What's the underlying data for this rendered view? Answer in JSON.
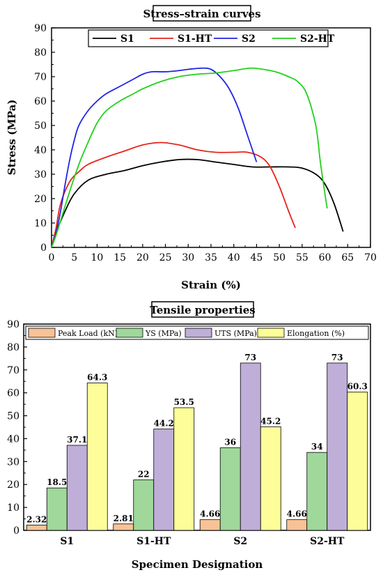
{
  "chart_data": [
    {
      "type": "line",
      "title": "Stress–strain curves",
      "xlabel": "Strain (%)",
      "ylabel": "Stress (MPa)",
      "xlim": [
        0,
        70
      ],
      "ylim": [
        0,
        90
      ],
      "xticks": [
        "0",
        "5",
        "10",
        "15",
        "20",
        "25",
        "30",
        "35",
        "40",
        "45",
        "50",
        "55",
        "60",
        "65",
        "70"
      ],
      "yticks": [
        "0",
        "10",
        "20",
        "30",
        "40",
        "50",
        "60",
        "70",
        "80",
        "90"
      ],
      "grid": false,
      "legend_position": "top",
      "series": [
        {
          "name": "S1",
          "color": "#000000",
          "x": [
            0,
            1,
            3,
            5,
            8,
            12,
            16,
            20,
            24,
            28,
            32,
            36,
            40,
            44,
            48,
            52,
            55,
            58,
            60,
            62,
            64
          ],
          "y": [
            0,
            6,
            15,
            22,
            27.5,
            30,
            31.5,
            33.5,
            35,
            36,
            36,
            35,
            34,
            33,
            33,
            33,
            32.5,
            30,
            26,
            18,
            6.5
          ]
        },
        {
          "name": "S1-HT",
          "color": "#e8231b",
          "x": [
            0,
            1,
            2,
            4,
            6,
            8,
            12,
            16,
            20,
            24,
            28,
            32,
            36,
            40,
            43,
            46,
            48,
            50,
            52,
            53.5
          ],
          "y": [
            0,
            8,
            18,
            27,
            31,
            34,
            37,
            39.5,
            42,
            43,
            42,
            40,
            39,
            39,
            39,
            37,
            33,
            25,
            15,
            8
          ]
        },
        {
          "name": "S2",
          "color": "#1f24e8",
          "x": [
            0,
            1,
            2,
            3,
            4,
            5,
            6,
            8,
            10,
            12,
            15,
            18,
            20,
            22,
            25,
            28,
            30,
            33,
            35,
            37,
            39,
            41,
            43,
            45
          ],
          "y": [
            0,
            6,
            15,
            26,
            36,
            44,
            50,
            56,
            60,
            63,
            66,
            69,
            71,
            72,
            72,
            72.5,
            73,
            73.5,
            73,
            70,
            65,
            57,
            46,
            35
          ]
        },
        {
          "name": "S2-HT",
          "color": "#22d11c",
          "x": [
            0,
            1,
            2,
            4,
            6,
            8,
            10,
            12,
            15,
            18,
            20,
            24,
            28,
            32,
            36,
            40,
            44,
            48,
            50,
            52,
            54,
            56,
            58,
            59,
            60,
            60.5
          ],
          "y": [
            0,
            5,
            11,
            23,
            34,
            43,
            51,
            56,
            60,
            63,
            65,
            68,
            70,
            71,
            71.5,
            72.5,
            73.5,
            72.5,
            71.5,
            70,
            68,
            63,
            50,
            35,
            22,
            16
          ]
        }
      ]
    },
    {
      "type": "bar",
      "title": "Tensile properties",
      "xlabel": "Specimen Designation",
      "ylabel": "",
      "ylim": [
        0,
        90
      ],
      "yticks": [
        "0",
        "10",
        "20",
        "30",
        "40",
        "50",
        "60",
        "70",
        "80",
        "90"
      ],
      "categories": [
        "S1",
        "S1-HT",
        "S2",
        "S2-HT"
      ],
      "legend_position": "top",
      "series": [
        {
          "name": "Peak Load (kN)",
          "color": "#f7c396",
          "values": [
            2.32,
            2.81,
            4.66,
            4.66
          ],
          "labels": [
            "2.32",
            "2.81",
            "4.66",
            "4.66"
          ]
        },
        {
          "name": "YS (MPa)",
          "color": "#9fd89a",
          "values": [
            18.5,
            22,
            36,
            34
          ],
          "labels": [
            "18.5",
            "22",
            "36",
            "34"
          ]
        },
        {
          "name": "UTS (MPa)",
          "color": "#bfaed8",
          "values": [
            37.1,
            44.2,
            73,
            73
          ],
          "labels": [
            "37.1",
            "44.2",
            "73",
            "73"
          ]
        },
        {
          "name": "Elongation (%)",
          "color": "#fdfd99",
          "values": [
            64.3,
            53.5,
            45.2,
            60.3
          ],
          "labels": [
            "64.3",
            "53.5",
            "45.2",
            "60.3"
          ]
        }
      ]
    }
  ]
}
